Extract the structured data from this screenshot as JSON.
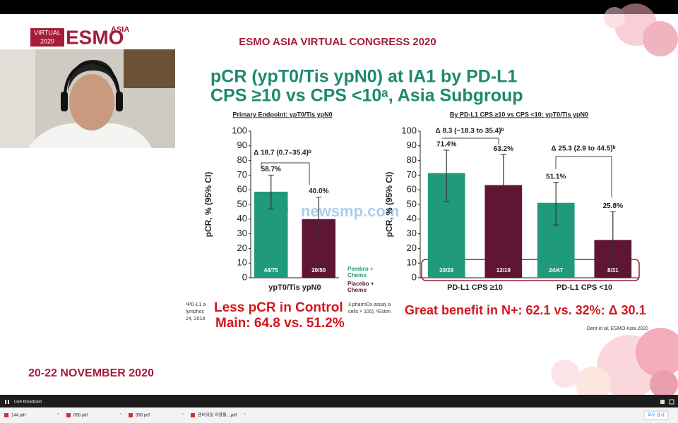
{
  "logo": {
    "virtual": "VIRTUAL",
    "year": "2020",
    "esmo": "ESMO",
    "asia": "ASIA"
  },
  "congress": "ESMO ASIA VIRTUAL CONGRESS 2020",
  "title": [
    "pCR (ypT0/Tis ypN0) at IA1 by PD-L1",
    "CPS ≥10 vs CPS <10ᵃ, Asia Subgroup"
  ],
  "chart_data": [
    {
      "type": "bar",
      "subtitle": "Primary Endpoint: ypT0/Tis ypN0",
      "y_label": "pCR, % (95% CI)",
      "categories": [
        "ypT0/Tis ypN0"
      ],
      "ylim": [
        0,
        100
      ],
      "yticks": [
        0,
        10,
        20,
        30,
        40,
        50,
        60,
        70,
        80,
        90,
        100
      ],
      "series": [
        {
          "name": "Pembro + Chemo",
          "color": "#1f9a7a",
          "values": [
            58.7
          ],
          "value_labels": [
            "58.7%"
          ],
          "ci_low": [
            47
          ],
          "ci_high": [
            70
          ],
          "n_labels": [
            "44/75"
          ]
        },
        {
          "name": "Placebo + Chemo",
          "color": "#5e1634",
          "values": [
            40.0
          ],
          "value_labels": [
            "40.0%"
          ],
          "ci_low": [
            26
          ],
          "ci_high": [
            55
          ],
          "n_labels": [
            "20/50"
          ]
        }
      ],
      "annotations": [
        "Δ 18.7 (0.7–35.4)ᵇ"
      ]
    },
    {
      "type": "bar",
      "subtitle": "By PD-L1 CPS ≥10 vs CPS <10: ypT0/Tis ypN0",
      "y_label": "pCR, % (95% CI)",
      "categories": [
        "PD-L1 CPS ≥10",
        "PD-L1 CPS <10"
      ],
      "ylim": [
        0,
        100
      ],
      "yticks": [
        0,
        10,
        20,
        30,
        40,
        50,
        60,
        70,
        80,
        90,
        100
      ],
      "series": [
        {
          "color": "#1f9a7a",
          "values": [
            71.4,
            51.1
          ],
          "value_labels": [
            "71.4%",
            "51.1%"
          ],
          "ci_low": [
            52,
            36
          ],
          "ci_high": [
            87,
            65
          ],
          "n_labels": [
            "20/28",
            "24/47"
          ]
        },
        {
          "color": "#5e1634",
          "values": [
            63.2,
            25.8
          ],
          "value_labels": [
            "63.2%",
            "25.8%"
          ],
          "ci_low": [
            38,
            10
          ],
          "ci_high": [
            84,
            45
          ],
          "n_labels": [
            "12/19",
            "8/31"
          ]
        }
      ],
      "annotations": [
        "Δ 8.3 (−18.3 to 35.4)ᵇ",
        "Δ 25.3 (2.9 to 44.5)ᵇ"
      ]
    }
  ],
  "footnotes": [
    "ᵃPD-L1 a",
    "lymphoc",
    "24, 2018",
    "3 pharmDx assay a",
    "cells × 100). ᵇEstim"
  ],
  "overlay": {
    "left": [
      "Less pCR in  Control",
      "Main: 64.8 vs. 51.2%"
    ],
    "right": "Great benefit in N+: 62.1 vs. 32%: Δ 30.1"
  },
  "watermark": "newsmp.com",
  "citation": "Dent et al, ESMO Asia 2020",
  "dates": "20-22 NOVEMBER 2020",
  "player": {
    "status": "Live broadcast"
  },
  "downloads": [
    "144.pdf",
    "858.pdf",
    "598.pdf",
    "랜버워일 의멀웰....pdf"
  ],
  "show_all": "모두 표시"
}
